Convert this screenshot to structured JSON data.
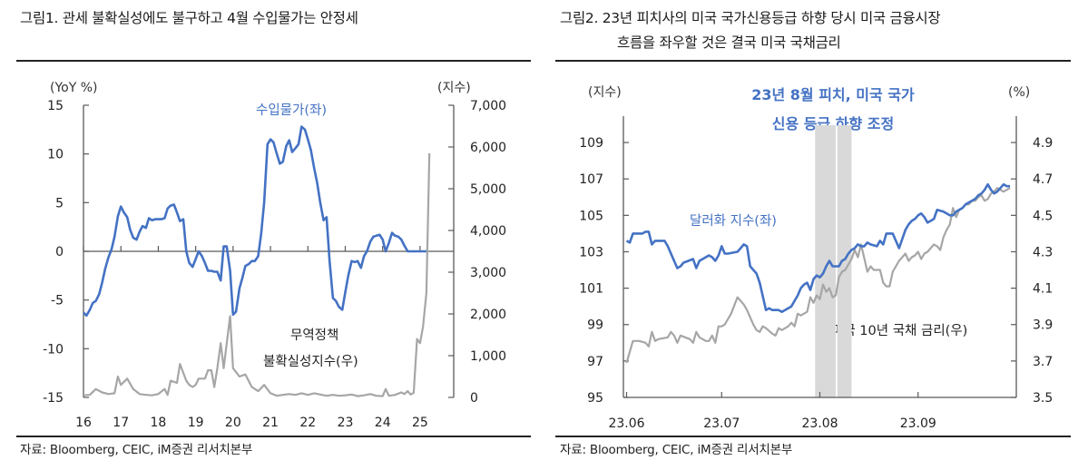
{
  "figures": [
    {
      "title": "그림1.   관세 불확실성에도 불구하고 4월 수입물가는 안정세",
      "source": "자료: Bloomberg, CEIC, iM증권 리서치본부"
    },
    {
      "title_line1": "그림2.   23년 피치사의 미국 국가신용등급 하향 당시 미국 금융시장",
      "title_line2": "흐름을 좌우할 것은 결국 미국 국채금리",
      "source": "자료: Bloomberg, CEIC, iM증권 리서치본부"
    }
  ],
  "colors": {
    "blue": "#4472c4",
    "gray": "#a6a6a6",
    "shade": "#d9d9d9",
    "axis": "#595959"
  },
  "chart_data": [
    {
      "type": "line",
      "title": "관세 불확실성에도 불구하고 4월 수입물가는 안정세",
      "ylabel_left": "(YoY %)",
      "ylabel_right": "(지수)",
      "ylim_left": [
        -15,
        15
      ],
      "ylim_right": [
        0,
        7000
      ],
      "yticks_left": [
        "15",
        "10",
        "5",
        "0",
        "-5",
        "-10",
        "-15"
      ],
      "yticks_left_values": [
        15,
        10,
        5,
        0,
        -5,
        -10,
        -15
      ],
      "yticks_right": [
        "7,000",
        "6,000",
        "5,000",
        "4,000",
        "3,000",
        "2,000",
        "1,000",
        "0"
      ],
      "yticks_right_values": [
        7000,
        6000,
        5000,
        4000,
        3000,
        2000,
        1000,
        0
      ],
      "xticks": [
        "16",
        "17",
        "18",
        "19",
        "20",
        "21",
        "22",
        "23",
        "24",
        "25"
      ],
      "xlim": [
        2016,
        2025.6
      ],
      "grid": false,
      "annotations": {
        "blue_label": "수입물가(좌)",
        "gray_label_line1": "무역정책",
        "gray_label_line2": "불확실성지수(우)"
      },
      "series": [
        {
          "name": "수입물가(좌)",
          "axis": "left",
          "color": "blue",
          "x": [
            2016.0,
            2016.08,
            2016.17,
            2016.25,
            2016.33,
            2016.42,
            2016.5,
            2016.58,
            2016.67,
            2016.75,
            2016.83,
            2016.92,
            2017.0,
            2017.08,
            2017.17,
            2017.25,
            2017.33,
            2017.42,
            2017.5,
            2017.58,
            2017.67,
            2017.75,
            2017.83,
            2017.92,
            2018.0,
            2018.08,
            2018.17,
            2018.25,
            2018.33,
            2018.42,
            2018.5,
            2018.58,
            2018.67,
            2018.75,
            2018.83,
            2018.92,
            2019.0,
            2019.08,
            2019.17,
            2019.25,
            2019.33,
            2019.42,
            2019.5,
            2019.58,
            2019.67,
            2019.75,
            2019.83,
            2019.92,
            2020.0,
            2020.08,
            2020.17,
            2020.25,
            2020.33,
            2020.42,
            2020.5,
            2020.58,
            2020.67,
            2020.75,
            2020.83,
            2020.92,
            2021.0,
            2021.08,
            2021.17,
            2021.25,
            2021.33,
            2021.42,
            2021.5,
            2021.58,
            2021.67,
            2021.75,
            2021.83,
            2021.92,
            2022.0,
            2022.08,
            2022.17,
            2022.25,
            2022.33,
            2022.42,
            2022.5,
            2022.58,
            2022.67,
            2022.75,
            2022.83,
            2022.92,
            2023.0,
            2023.08,
            2023.17,
            2023.25,
            2023.33,
            2023.42,
            2023.5,
            2023.58,
            2023.67,
            2023.75,
            2023.83,
            2023.92,
            2024.0,
            2024.08,
            2024.17,
            2024.25,
            2024.33,
            2024.42,
            2024.5,
            2024.58,
            2024.67,
            2024.75,
            2024.83,
            2024.92,
            2025.0,
            2025.08,
            2025.17,
            2025.25
          ],
          "values": [
            -6.3,
            -6.6,
            -6.0,
            -5.3,
            -5.1,
            -4.4,
            -3.2,
            -1.8,
            -0.6,
            0.2,
            1.5,
            3.6,
            4.6,
            4.0,
            3.5,
            2.2,
            1.4,
            1.2,
            2.0,
            2.6,
            2.4,
            3.4,
            3.2,
            3.3,
            3.3,
            3.3,
            3.4,
            4.4,
            4.7,
            4.8,
            4.0,
            3.1,
            3.3,
            0.0,
            -1.2,
            -1.6,
            -0.8,
            0.0,
            -0.5,
            -1.2,
            -2.0,
            -2.0,
            -2.1,
            -2.1,
            -3.0,
            0.5,
            0.5,
            -2.0,
            -6.5,
            -6.2,
            -3.8,
            -2.7,
            -1.5,
            -1.3,
            -1.0,
            -1.0,
            -0.5,
            1.8,
            5.0,
            11.0,
            11.5,
            11.2,
            10.0,
            9.0,
            9.2,
            10.8,
            11.4,
            10.2,
            10.6,
            11.0,
            12.8,
            12.5,
            11.5,
            10.4,
            8.5,
            7.0,
            5.0,
            3.2,
            3.5,
            -1.0,
            -4.8,
            -5.1,
            -5.7,
            -6.0,
            -4.2,
            -2.5,
            -1.0,
            -1.1,
            -1.0,
            -1.7,
            -0.5,
            0.0,
            1.0,
            1.5,
            1.6,
            1.7,
            1.2,
            0.0,
            0.9,
            1.9,
            1.6,
            1.5,
            1.2,
            0.6,
            0.0,
            0.0,
            0.0,
            0.0,
            0.0,
            0.0,
            0.0,
            0.0
          ],
          "note": "latest observations end at ~0 near 2025.2"
        },
        {
          "name": "무역정책 불확실성지수(우)",
          "axis": "right",
          "color": "gray",
          "x": [
            2016.0,
            2016.17,
            2016.33,
            2016.5,
            2016.67,
            2016.83,
            2016.92,
            2017.0,
            2017.17,
            2017.33,
            2017.5,
            2017.67,
            2017.83,
            2018.0,
            2018.17,
            2018.25,
            2018.33,
            2018.5,
            2018.58,
            2018.75,
            2018.83,
            2018.92,
            2019.0,
            2019.08,
            2019.25,
            2019.33,
            2019.42,
            2019.5,
            2019.58,
            2019.67,
            2019.75,
            2019.92,
            2020.0,
            2020.17,
            2020.33,
            2020.5,
            2020.67,
            2020.83,
            2021.0,
            2021.17,
            2021.33,
            2021.5,
            2021.67,
            2021.83,
            2022.0,
            2022.17,
            2022.33,
            2022.5,
            2022.67,
            2022.83,
            2023.0,
            2023.17,
            2023.33,
            2023.5,
            2023.67,
            2023.83,
            2024.0,
            2024.08,
            2024.17,
            2024.33,
            2024.5,
            2024.58,
            2024.67,
            2024.75,
            2024.83,
            2024.92,
            2025.0,
            2025.08,
            2025.17,
            2025.25
          ],
          "values": [
            50,
            60,
            200,
            120,
            80,
            100,
            500,
            300,
            450,
            200,
            80,
            60,
            50,
            80,
            200,
            60,
            400,
            350,
            800,
            400,
            300,
            250,
            300,
            450,
            450,
            650,
            650,
            250,
            700,
            1300,
            700,
            1950,
            700,
            500,
            550,
            250,
            150,
            300,
            100,
            40,
            60,
            80,
            60,
            100,
            60,
            100,
            70,
            40,
            60,
            40,
            50,
            70,
            30,
            50,
            80,
            40,
            30,
            200,
            40,
            60,
            120,
            80,
            150,
            70,
            110,
            1400,
            1300,
            1700,
            2500,
            5850
          ]
        }
      ]
    },
    {
      "type": "line",
      "title": "23년 피치사의 미국 국가신용등급 하향 당시 미국 금융시장 흐름을 좌우할 것은 결국 미국 국채금리",
      "ylabel_left": "(지수)",
      "ylabel_right": "(%)",
      "ylim_left": [
        95,
        110
      ],
      "ylim_right": [
        3.5,
        5.0
      ],
      "yticks_left": [
        "109",
        "107",
        "105",
        "103",
        "101",
        "99",
        "97",
        "95"
      ],
      "yticks_left_values": [
        109,
        107,
        105,
        103,
        101,
        99,
        97,
        95
      ],
      "yticks_right": [
        "4.9",
        "4.7",
        "4.5",
        "4.3",
        "4.1",
        "3.9",
        "3.7",
        "3.5"
      ],
      "yticks_right_values": [
        4.9,
        4.7,
        4.5,
        4.3,
        4.1,
        3.9,
        3.7,
        3.5
      ],
      "xticks": [
        "23.06",
        "23.07",
        "23.08",
        "23.09"
      ],
      "xlim_days": [
        0,
        122
      ],
      "xtick_days": [
        0,
        30,
        61,
        92
      ],
      "grid": false,
      "shaded_regions_days": [
        [
          59.5,
          66
        ],
        [
          66.5,
          71
        ]
      ],
      "annotations": {
        "event_line1": "23년 8월 피치, 미국 국가",
        "event_line2": "신용 등급 하향 조정",
        "blue_label": "달러화 지수(좌)",
        "gray_label": "미국 10년 국채 금리(우)"
      },
      "series": [
        {
          "name": "달러화 지수(좌)",
          "axis": "left",
          "color": "blue",
          "x": [
            0,
            1,
            2,
            5,
            6,
            7,
            8,
            9,
            12,
            13,
            14,
            16,
            17,
            18,
            21,
            22,
            23,
            26,
            27,
            28,
            29,
            30,
            31,
            32,
            35,
            36,
            37,
            38,
            39,
            41,
            42,
            44,
            45,
            46,
            48,
            49,
            52,
            53,
            54,
            55,
            56,
            57,
            58,
            59,
            60,
            61,
            62,
            63,
            64,
            65,
            66,
            67,
            68,
            69,
            70,
            71,
            72,
            73,
            74,
            75,
            76,
            77,
            79,
            80,
            81,
            82,
            83,
            84,
            86,
            87,
            88,
            89,
            90,
            91,
            92,
            93,
            94,
            95,
            96,
            97,
            98,
            100,
            101,
            102,
            103,
            104,
            105,
            106,
            107,
            108,
            109,
            110,
            111,
            112,
            113,
            114,
            115,
            116,
            117,
            118,
            119,
            120,
            121
          ],
          "values": [
            103.6,
            103.5,
            104.0,
            104.0,
            104.1,
            104.1,
            103.4,
            103.6,
            103.6,
            103.3,
            102.9,
            102.1,
            102.2,
            102.4,
            102.6,
            102.1,
            102.5,
            102.8,
            102.7,
            102.5,
            102.8,
            103.3,
            102.9,
            102.9,
            103.0,
            103.2,
            103.4,
            103.3,
            102.2,
            101.8,
            101.3,
            99.8,
            99.9,
            99.8,
            99.8,
            99.7,
            100.0,
            100.3,
            100.6,
            101.0,
            101.2,
            101.3,
            100.9,
            101.5,
            101.7,
            101.6,
            101.8,
            102.2,
            102.5,
            102.2,
            102.2,
            102.2,
            102.5,
            102.6,
            102.9,
            103.1,
            103.2,
            103.4,
            103.3,
            103.3,
            103.5,
            103.4,
            103.3,
            103.6,
            103.4,
            104.0,
            104.0,
            104.0,
            103.2,
            103.7,
            104.2,
            104.5,
            104.7,
            104.8,
            105.0,
            105.1,
            104.9,
            104.6,
            104.7,
            104.8,
            105.3,
            105.2,
            105.1,
            105.0,
            105.0,
            105.2,
            105.3,
            105.4,
            105.6,
            105.7,
            105.8,
            105.9,
            106.1,
            106.2,
            106.4,
            106.7,
            106.4,
            106.2,
            106.3,
            106.5,
            106.7,
            106.6,
            106.6
          ]
        },
        {
          "name": "미국 10년 국채 금리(우)",
          "axis": "right",
          "color": "gray",
          "x": [
            0,
            1,
            2,
            4,
            6,
            7,
            8,
            9,
            10,
            13,
            14,
            15,
            16,
            17,
            20,
            21,
            22,
            23,
            24,
            25,
            26,
            27,
            28,
            29,
            30,
            31,
            32,
            33,
            35,
            36,
            37,
            38,
            39,
            40,
            41,
            42,
            43,
            44,
            46,
            47,
            48,
            49,
            51,
            52,
            53,
            54,
            55,
            56,
            57,
            58,
            59,
            60,
            61,
            62,
            63,
            64,
            65,
            66,
            67,
            68,
            69,
            70,
            71,
            72,
            73,
            74,
            76,
            77,
            78,
            80,
            81,
            82,
            83,
            84,
            86,
            87,
            88,
            89,
            90,
            91,
            92,
            93,
            94,
            95,
            97,
            98,
            99,
            100,
            101,
            102,
            103,
            104,
            105,
            106,
            107,
            108,
            109,
            110,
            111,
            112,
            113,
            114,
            115,
            116,
            117,
            118,
            119,
            120,
            121
          ],
          "values": [
            3.69,
            3.75,
            3.81,
            3.81,
            3.8,
            3.78,
            3.86,
            3.81,
            3.82,
            3.83,
            3.86,
            3.84,
            3.8,
            3.84,
            3.82,
            3.8,
            3.86,
            3.83,
            3.82,
            3.81,
            3.81,
            3.84,
            3.8,
            3.89,
            3.89,
            3.9,
            3.93,
            3.96,
            4.05,
            4.03,
            4.01,
            3.98,
            3.94,
            3.9,
            3.87,
            3.86,
            3.89,
            3.88,
            3.85,
            3.84,
            3.88,
            3.87,
            3.89,
            3.91,
            3.89,
            3.96,
            3.95,
            3.96,
            3.97,
            4.05,
            4.02,
            4.06,
            4.04,
            4.12,
            4.08,
            4.1,
            4.05,
            4.06,
            4.16,
            4.19,
            4.2,
            4.23,
            4.26,
            4.31,
            4.27,
            4.34,
            4.19,
            4.22,
            4.2,
            4.2,
            4.13,
            4.11,
            4.11,
            4.19,
            4.25,
            4.27,
            4.29,
            4.25,
            4.27,
            4.28,
            4.3,
            4.26,
            4.29,
            4.3,
            4.34,
            4.33,
            4.31,
            4.38,
            4.42,
            4.45,
            4.54,
            4.49,
            4.53,
            4.54,
            4.56,
            4.56,
            4.58,
            4.58,
            4.6,
            4.61,
            4.58,
            4.59,
            4.62,
            4.63,
            4.65,
            4.64,
            4.63,
            4.64,
            4.65
          ]
        }
      ]
    }
  ]
}
